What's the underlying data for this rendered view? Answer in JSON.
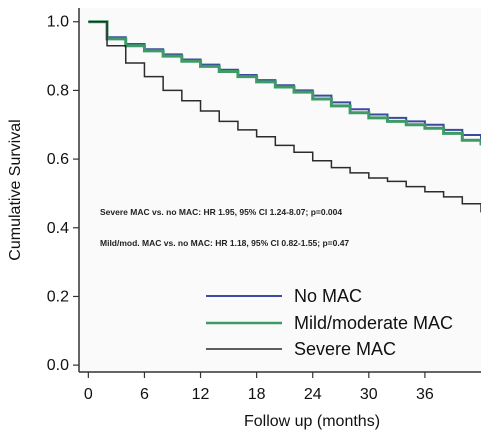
{
  "chart_data": {
    "type": "line",
    "title": "",
    "xlabel": "Follow up (months)",
    "ylabel": "Cumulative Survival",
    "xlim": [
      -1,
      42
    ],
    "ylim": [
      -0.02,
      1.04
    ],
    "x_ticks": [
      "0",
      "6",
      "12",
      "18",
      "24",
      "30",
      "36"
    ],
    "y_ticks": [
      "0.0",
      "0.2",
      "0.4",
      "0.6",
      "0.8",
      "1.0"
    ],
    "grid": false,
    "legend_position": "bottom-right",
    "series": [
      {
        "name": "No MAC",
        "color": "#3a4aa0",
        "x": [
          0,
          2,
          4,
          6,
          8,
          10,
          12,
          14,
          16,
          18,
          20,
          22,
          24,
          26,
          28,
          30,
          32,
          34,
          36,
          38,
          40,
          42
        ],
        "y": [
          1.0,
          0.955,
          0.935,
          0.92,
          0.905,
          0.89,
          0.875,
          0.86,
          0.845,
          0.83,
          0.815,
          0.8,
          0.785,
          0.765,
          0.745,
          0.73,
          0.72,
          0.71,
          0.7,
          0.685,
          0.67,
          0.655
        ]
      },
      {
        "name": "Mild/moderate MAC",
        "color": "#3f9a66",
        "x": [
          0,
          2,
          4,
          6,
          8,
          10,
          12,
          14,
          16,
          18,
          20,
          22,
          24,
          26,
          28,
          30,
          32,
          34,
          36,
          38,
          40,
          42
        ],
        "y": [
          1.0,
          0.95,
          0.93,
          0.915,
          0.9,
          0.885,
          0.87,
          0.855,
          0.84,
          0.825,
          0.81,
          0.795,
          0.775,
          0.755,
          0.735,
          0.72,
          0.71,
          0.7,
          0.69,
          0.675,
          0.655,
          0.64
        ]
      },
      {
        "name": "Severe MAC",
        "color": "#2b2b2b",
        "x": [
          0,
          2,
          4,
          6,
          8,
          10,
          12,
          14,
          16,
          18,
          20,
          22,
          24,
          26,
          28,
          30,
          32,
          34,
          36,
          38,
          40,
          42
        ],
        "y": [
          1.0,
          0.93,
          0.88,
          0.84,
          0.8,
          0.77,
          0.74,
          0.71,
          0.685,
          0.665,
          0.64,
          0.62,
          0.595,
          0.575,
          0.56,
          0.545,
          0.535,
          0.52,
          0.505,
          0.49,
          0.47,
          0.445
        ]
      }
    ],
    "annotations": [
      "Severe MAC vs. no MAC: HR 1.95, 95% CI 1.24-8.07; p=0.004",
      "Mild/mod. MAC vs. no MAC: HR 1.18, 95% CI 0.82-1.55; p=0.47"
    ],
    "legend": [
      "No MAC",
      "Mild/moderate MAC",
      "Severe MAC"
    ]
  }
}
